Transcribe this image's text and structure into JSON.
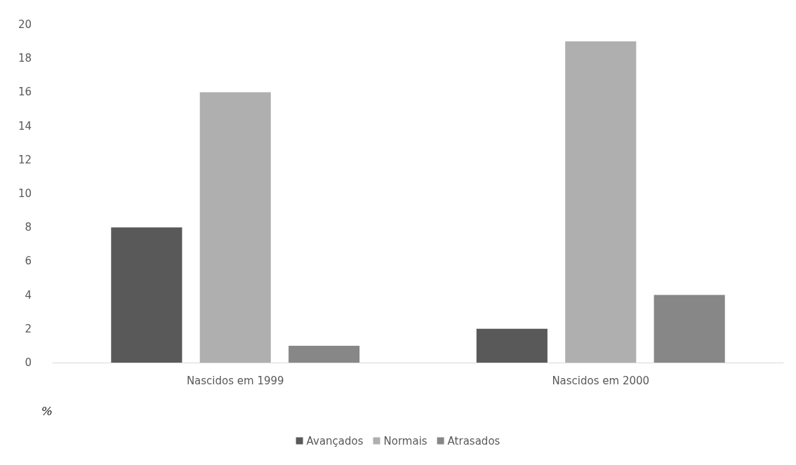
{
  "chart_data": {
    "type": "bar",
    "ylabel": "%",
    "categories": [
      "Nascidos em 1999",
      "Nascidos em 2000"
    ],
    "series": [
      {
        "name": "Avançados",
        "color": "#595959",
        "values": [
          8,
          2
        ]
      },
      {
        "name": "Normais",
        "color": "#afafaf",
        "values": [
          16,
          19
        ]
      },
      {
        "name": "Atrasados",
        "color": "#878787",
        "values": [
          1,
          4
        ]
      }
    ],
    "ylim": [
      0,
      20
    ],
    "yticks": [
      0,
      2,
      4,
      6,
      8,
      10,
      12,
      14,
      16,
      18,
      20
    ],
    "grid": false,
    "legend": "bottom"
  }
}
